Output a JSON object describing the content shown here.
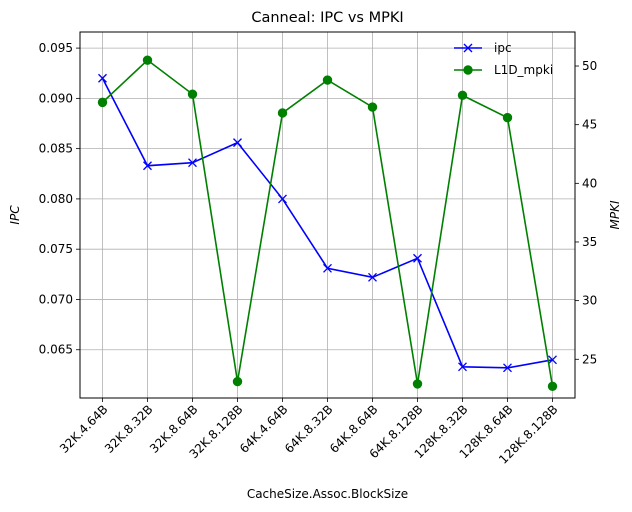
{
  "chart_data": {
    "type": "line",
    "title": "Canneal: IPC vs MPKI",
    "xlabel": "CacheSize.Assoc.BlockSize",
    "ylabel_left": "IPC",
    "ylabel_right": "MPKI",
    "categories": [
      "32K.4.64B",
      "32K.8.32B",
      "32K.8.64B",
      "32K.8.128B",
      "64K.4.64B",
      "64K.8.32B",
      "64K.8.64B",
      "64K.8.128B",
      "128K.8.32B",
      "128K.8.64B",
      "128K.8.128B"
    ],
    "ylim_left": [
      0.0602,
      0.0966
    ],
    "ylim_right": [
      21.7,
      52.9
    ],
    "yticks_left": [
      "0.065",
      "0.070",
      "0.075",
      "0.080",
      "0.085",
      "0.090",
      "0.095"
    ],
    "yticks_right": [
      "25",
      "30",
      "35",
      "40",
      "45",
      "50"
    ],
    "grid": true,
    "legend_position": "top-right",
    "series": [
      {
        "name": "ipc",
        "axis": "left",
        "color": "#0000ff",
        "marker": "x",
        "values": [
          0.092,
          0.0833,
          0.0836,
          0.0856,
          0.08,
          0.0731,
          0.0722,
          0.0741,
          0.0633,
          0.0632,
          0.064
        ]
      },
      {
        "name": "L1D_mpki",
        "axis": "right",
        "color": "#008000",
        "marker": "o",
        "values": [
          46.9,
          50.5,
          47.6,
          23.1,
          46.0,
          48.8,
          46.5,
          22.9,
          47.5,
          45.6,
          22.7
        ]
      }
    ]
  }
}
